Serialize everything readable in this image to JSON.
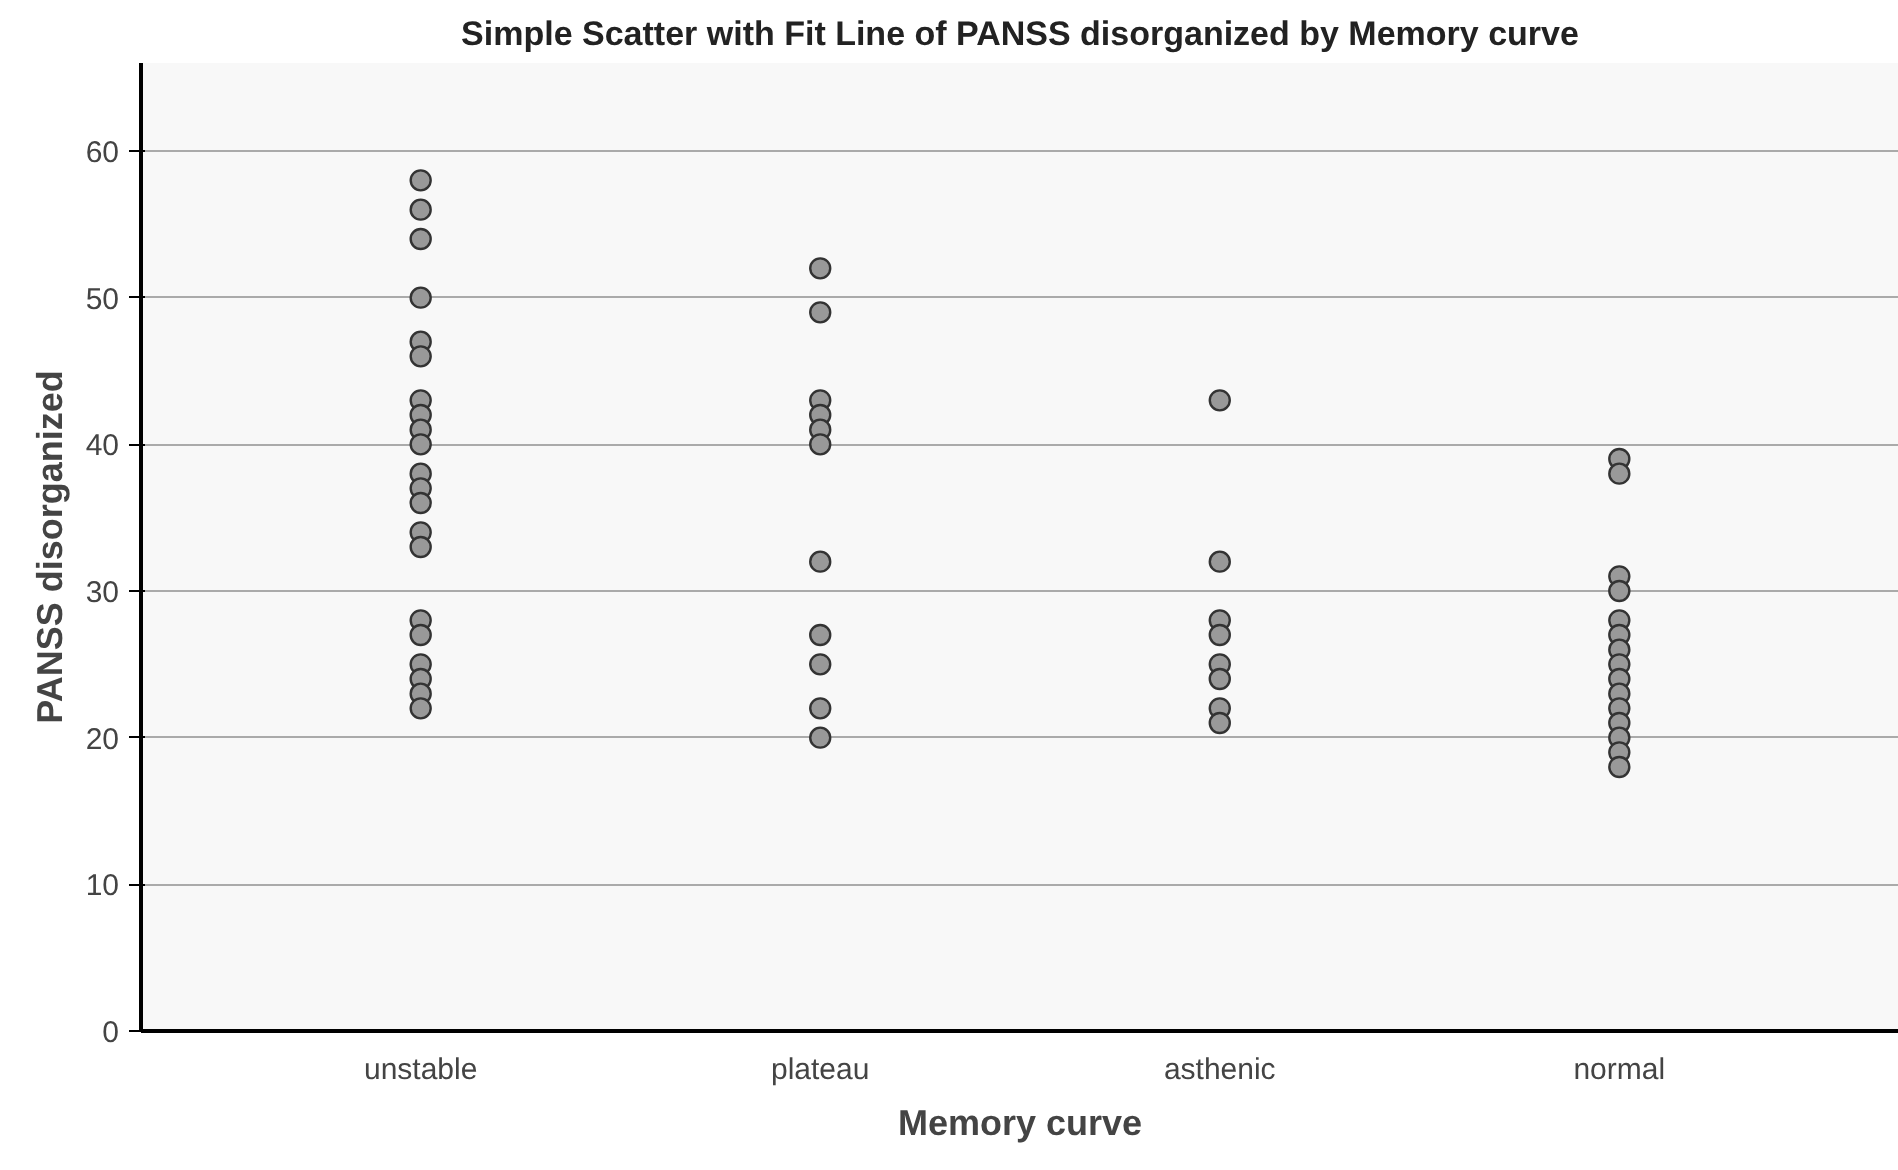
{
  "chart_data": {
    "type": "scatter",
    "title": "Simple Scatter with Fit Line of PANSS disorganized by Memory curve",
    "xlabel": "Memory curve",
    "ylabel": "PANSS disorganized",
    "categories": [
      "unstable",
      "plateau",
      "asthenic",
      "normal"
    ],
    "series": [
      {
        "color": "#999999",
        "x": [
          "unstable",
          "unstable",
          "unstable",
          "unstable",
          "unstable",
          "unstable",
          "unstable",
          "unstable",
          "unstable",
          "unstable",
          "unstable",
          "unstable",
          "unstable",
          "unstable",
          "unstable",
          "unstable",
          "unstable",
          "unstable",
          "unstable",
          "unstable",
          "unstable",
          "plateau",
          "plateau",
          "plateau",
          "plateau",
          "plateau",
          "plateau",
          "plateau",
          "plateau",
          "plateau",
          "plateau",
          "plateau",
          "asthenic",
          "asthenic",
          "asthenic",
          "asthenic",
          "asthenic",
          "asthenic",
          "asthenic",
          "asthenic",
          "normal",
          "normal",
          "normal",
          "normal",
          "normal",
          "normal",
          "normal",
          "normal",
          "normal",
          "normal",
          "normal",
          "normal",
          "normal",
          "normal",
          "normal"
        ],
        "values": [
          58,
          56,
          54,
          50,
          47,
          46,
          43,
          42,
          41,
          40,
          38,
          37,
          36,
          34,
          33,
          28,
          27,
          25,
          24,
          23,
          22,
          52,
          49,
          43,
          42,
          41,
          40,
          32,
          27,
          25,
          22,
          20,
          43,
          32,
          28,
          27,
          25,
          24,
          22,
          21,
          39,
          38,
          31,
          30,
          28,
          27,
          26,
          25,
          24,
          23,
          22,
          21,
          20,
          19,
          18
        ]
      }
    ],
    "ylim": [
      0,
      66
    ],
    "yticks": [
      0,
      10,
      20,
      30,
      40,
      50,
      60
    ],
    "grid": "y",
    "marker": "circle"
  }
}
